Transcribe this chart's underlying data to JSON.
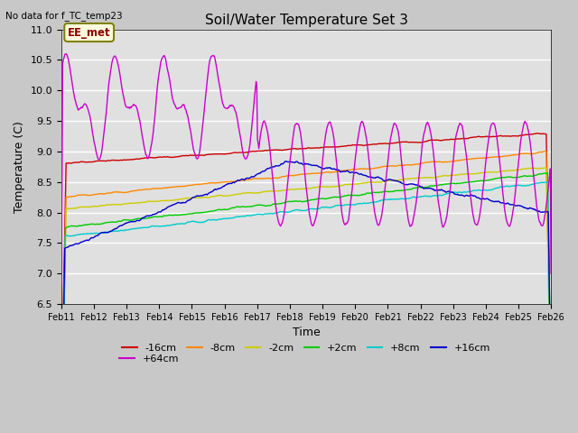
{
  "title": "Soil/Water Temperature Set 3",
  "xlabel": "Time",
  "ylabel": "Temperature (C)",
  "top_left_text": "No data for f_TC_temp23",
  "annotation_text": "EE_met",
  "ylim": [
    6.5,
    11.0
  ],
  "xlim": [
    0,
    360
  ],
  "x_tick_labels": [
    "Feb 11",
    "Feb 12",
    "Feb 13",
    "Feb 14",
    "Feb 15",
    "Feb 16",
    "Feb 17",
    "Feb 18",
    "Feb 19",
    "Feb 20",
    "Feb 21",
    "Feb 22",
    "Feb 23",
    "Feb 24",
    "Feb 25",
    "Feb 26"
  ],
  "series_colors": {
    "-16cm": "#cc0000",
    "-8cm": "#ff8800",
    "-2cm": "#cccc00",
    "+2cm": "#00cc00",
    "+8cm": "#00cccc",
    "+16cm": "#0000cc",
    "+64cm": "#cc00cc"
  },
  "fig_bg_color": "#c8c8c8",
  "plot_bg_color": "#e0e0e0",
  "grid_color": "#ffffff",
  "figsize": [
    6.4,
    4.8
  ],
  "dpi": 100
}
